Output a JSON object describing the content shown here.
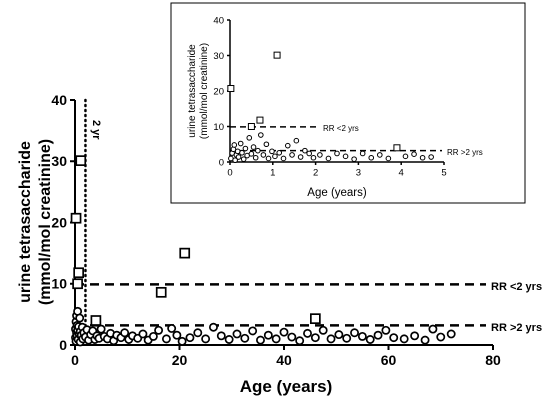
{
  "chart_data": [
    {
      "type": "scatter",
      "panel": "main",
      "xlabel": "Age (years)",
      "ylabel_line1": "urine tetrasaccharide",
      "ylabel_line2": "(mmol/mol creatinine)",
      "xlim": [
        0,
        80
      ],
      "ylim": [
        0,
        40
      ],
      "x_ticks": [
        0,
        20,
        40,
        60,
        80
      ],
      "y_ticks": [
        0,
        10,
        20,
        30,
        40
      ],
      "reference_lines": [
        {
          "label": "RR <2 yrs",
          "y": 9.9,
          "style": "dashed"
        },
        {
          "label": "RR >2 yrs",
          "y": 3.2,
          "style": "dashed"
        }
      ],
      "vertical_line": {
        "label": "2 yr",
        "x": 2,
        "style": "dotted"
      },
      "series": [
        {
          "marker": "square",
          "points": [
            [
              0.2,
              20.7
            ],
            [
              0.5,
              10.0
            ],
            [
              0.7,
              11.8
            ],
            [
              1.1,
              30.1
            ],
            [
              4.0,
              4.0
            ],
            [
              16.5,
              8.6
            ],
            [
              21.0,
              15.0
            ],
            [
              46.0,
              4.3
            ]
          ]
        },
        {
          "marker": "circle",
          "points": [
            [
              0.1,
              1.2
            ],
            [
              0.1,
              2.6
            ],
            [
              0.2,
              3.8
            ],
            [
              0.2,
              0.6
            ],
            [
              0.3,
              4.8
            ],
            [
              0.3,
              2.0
            ],
            [
              0.4,
              3.2
            ],
            [
              0.4,
              1.5
            ],
            [
              0.5,
              5.5
            ],
            [
              0.5,
              2.4
            ],
            [
              0.6,
              0.9
            ],
            [
              0.7,
              3.0
            ],
            [
              0.8,
              1.8
            ],
            [
              0.9,
              4.4
            ],
            [
              1.0,
              2.2
            ],
            [
              1.0,
              0.5
            ],
            [
              1.2,
              1.6
            ],
            [
              1.4,
              2.9
            ],
            [
              1.5,
              1.0
            ],
            [
              1.7,
              2.0
            ],
            [
              2.0,
              1.3
            ],
            [
              2.3,
              2.5
            ],
            [
              2.6,
              0.8
            ],
            [
              3.0,
              1.7
            ],
            [
              3.4,
              2.3
            ],
            [
              3.8,
              0.9
            ],
            [
              4.2,
              1.5
            ],
            [
              4.6,
              1.1
            ],
            [
              5.0,
              2.6
            ],
            [
              5.6,
              1.4
            ],
            [
              6.2,
              1.0
            ],
            [
              6.8,
              1.9
            ],
            [
              7.4,
              0.7
            ],
            [
              8.0,
              1.6
            ],
            [
              8.8,
              1.2
            ],
            [
              9.5,
              2.0
            ],
            [
              10.3,
              0.9
            ],
            [
              11.0,
              1.5
            ],
            [
              12.0,
              1.1
            ],
            [
              13.0,
              1.8
            ],
            [
              14.0,
              0.8
            ],
            [
              15.0,
              1.4
            ],
            [
              16.0,
              2.4
            ],
            [
              17.5,
              1.0
            ],
            [
              18.5,
              2.7
            ],
            [
              19.5,
              1.6
            ],
            [
              20.5,
              0.6
            ],
            [
              22.0,
              1.2
            ],
            [
              23.5,
              2.0
            ],
            [
              25.0,
              1.0
            ],
            [
              26.5,
              2.9
            ],
            [
              28.0,
              1.5
            ],
            [
              29.5,
              0.9
            ],
            [
              31.0,
              1.8
            ],
            [
              32.5,
              1.1
            ],
            [
              34.0,
              2.3
            ],
            [
              35.5,
              0.8
            ],
            [
              37.0,
              1.6
            ],
            [
              38.5,
              1.0
            ],
            [
              40.0,
              2.1
            ],
            [
              41.5,
              1.3
            ],
            [
              43.0,
              0.7
            ],
            [
              44.5,
              1.9
            ],
            [
              46.0,
              1.2
            ],
            [
              47.5,
              2.4
            ],
            [
              49.0,
              1.0
            ],
            [
              50.5,
              1.7
            ],
            [
              52.0,
              1.1
            ],
            [
              53.5,
              2.0
            ],
            [
              55.0,
              1.4
            ],
            [
              56.5,
              0.9
            ],
            [
              58.0,
              1.6
            ],
            [
              59.5,
              2.4
            ],
            [
              61.0,
              1.2
            ],
            [
              63.0,
              1.0
            ],
            [
              65.0,
              1.5
            ],
            [
              67.0,
              0.8
            ],
            [
              68.5,
              2.6
            ],
            [
              70.0,
              1.3
            ],
            [
              72.0,
              1.8
            ]
          ]
        }
      ]
    },
    {
      "type": "scatter",
      "panel": "inset",
      "xlabel": "Age (years)",
      "ylabel_line1": "urine tetrasaccharide",
      "ylabel_line2": "(mmol/mol creatinine)",
      "xlim": [
        0,
        5
      ],
      "ylim": [
        0,
        40
      ],
      "x_ticks": [
        0,
        1,
        2,
        3,
        4,
        5
      ],
      "y_ticks": [
        0,
        10,
        20,
        30,
        40
      ],
      "reference_lines": [
        {
          "label": "RR <2 yrs",
          "y": 9.9,
          "style": "dashed"
        },
        {
          "label": "RR >2 yrs",
          "y": 3.2,
          "style": "dashed"
        }
      ],
      "series": [
        {
          "marker": "square",
          "points": [
            [
              0.02,
              20.7
            ],
            [
              0.5,
              10.0
            ],
            [
              0.7,
              11.8
            ],
            [
              1.1,
              30.1
            ],
            [
              3.9,
              4.0
            ]
          ]
        },
        {
          "marker": "circle",
          "points": [
            [
              0.02,
              1.0
            ],
            [
              0.05,
              2.5
            ],
            [
              0.08,
              3.6
            ],
            [
              0.1,
              4.8
            ],
            [
              0.12,
              0.5
            ],
            [
              0.15,
              2.0
            ],
            [
              0.18,
              3.0
            ],
            [
              0.2,
              1.4
            ],
            [
              0.25,
              5.2
            ],
            [
              0.28,
              2.6
            ],
            [
              0.32,
              0.8
            ],
            [
              0.36,
              3.8
            ],
            [
              0.4,
              1.8
            ],
            [
              0.45,
              6.8
            ],
            [
              0.5,
              2.3
            ],
            [
              0.55,
              4.2
            ],
            [
              0.6,
              1.2
            ],
            [
              0.65,
              3.2
            ],
            [
              0.72,
              7.6
            ],
            [
              0.78,
              2.0
            ],
            [
              0.85,
              5.0
            ],
            [
              0.9,
              1.0
            ],
            [
              0.98,
              3.0
            ],
            [
              1.05,
              1.6
            ],
            [
              1.15,
              2.6
            ],
            [
              1.25,
              1.0
            ],
            [
              1.35,
              4.6
            ],
            [
              1.45,
              2.0
            ],
            [
              1.55,
              6.0
            ],
            [
              1.65,
              1.4
            ],
            [
              1.75,
              3.2
            ],
            [
              1.85,
              2.4
            ],
            [
              1.95,
              1.2
            ],
            [
              2.1,
              2.0
            ],
            [
              2.3,
              1.0
            ],
            [
              2.5,
              2.4
            ],
            [
              2.7,
              1.6
            ],
            [
              2.9,
              0.8
            ],
            [
              3.1,
              2.4
            ],
            [
              3.3,
              1.2
            ],
            [
              3.5,
              2.0
            ],
            [
              3.7,
              1.0
            ],
            [
              4.1,
              1.6
            ],
            [
              4.3,
              2.2
            ],
            [
              4.5,
              1.2
            ],
            [
              4.7,
              1.4
            ]
          ]
        }
      ]
    }
  ]
}
